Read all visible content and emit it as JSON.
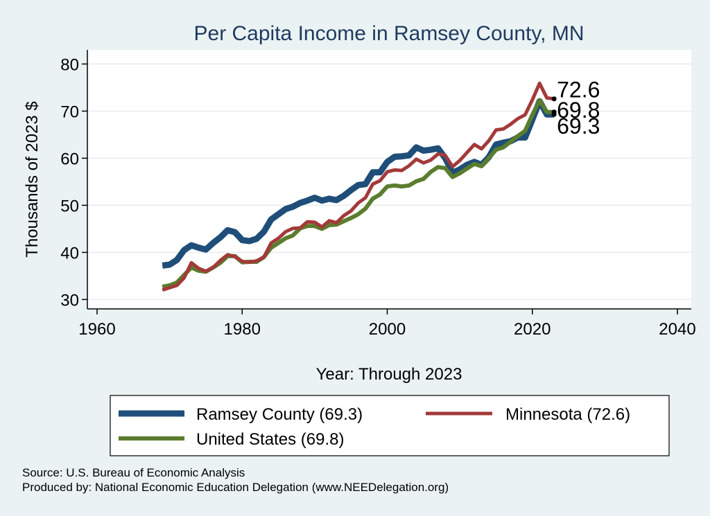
{
  "chart_data": {
    "type": "line",
    "title": "Per Capita Income in Ramsey County, MN",
    "xlabel": "Year: Through 2023",
    "ylabel": "Thousands of 2023 $",
    "xlim": [
      1960,
      2040
    ],
    "ylim": [
      28,
      83
    ],
    "xticks": [
      1960,
      1980,
      2000,
      2020,
      2040
    ],
    "yticks": [
      30,
      40,
      50,
      60,
      70,
      80
    ],
    "grid": true,
    "legend_position": "bottom",
    "x": [
      1969,
      1970,
      1971,
      1972,
      1973,
      1974,
      1975,
      1976,
      1977,
      1978,
      1979,
      1980,
      1981,
      1982,
      1983,
      1984,
      1985,
      1986,
      1987,
      1988,
      1989,
      1990,
      1991,
      1992,
      1993,
      1994,
      1995,
      1996,
      1997,
      1998,
      1999,
      2000,
      2001,
      2002,
      2003,
      2004,
      2005,
      2006,
      2007,
      2008,
      2009,
      2010,
      2011,
      2012,
      2013,
      2014,
      2015,
      2016,
      2017,
      2018,
      2019,
      2020,
      2021,
      2022,
      2023
    ],
    "series": [
      {
        "name": "Ramsey County (69.3)",
        "color": "#1f4e79",
        "values": [
          37.2,
          37.4,
          38.4,
          40.5,
          41.5,
          41.0,
          40.6,
          42.0,
          43.2,
          44.7,
          44.3,
          42.6,
          42.4,
          42.9,
          44.4,
          47.0,
          48.1,
          49.2,
          49.7,
          50.5,
          51.0,
          51.6,
          51.0,
          51.4,
          51.1,
          52.0,
          53.2,
          54.3,
          54.5,
          57.0,
          57.0,
          59.2,
          60.3,
          60.4,
          60.6,
          62.3,
          61.6,
          61.8,
          62.1,
          60.0,
          56.9,
          57.6,
          58.6,
          59.2,
          58.6,
          60.2,
          62.9,
          63.3,
          63.6,
          64.4,
          64.4,
          68.2,
          72.1,
          69.3,
          69.3
        ],
        "end_label": "69.3"
      },
      {
        "name": "Minnesota (72.6)",
        "color": "#a33a3a",
        "values": [
          32.0,
          32.5,
          33.0,
          34.6,
          37.8,
          36.6,
          36.0,
          36.8,
          38.3,
          39.5,
          39.1,
          38.1,
          37.9,
          38.2,
          39.0,
          42.0,
          43.0,
          44.4,
          45.1,
          45.2,
          46.5,
          46.4,
          45.4,
          46.7,
          46.3,
          47.8,
          48.8,
          50.5,
          51.6,
          54.5,
          55.2,
          57.1,
          57.5,
          57.4,
          58.4,
          59.8,
          59.0,
          59.6,
          60.9,
          60.6,
          58.2,
          59.5,
          61.2,
          62.9,
          62.0,
          63.7,
          66.0,
          66.2,
          67.2,
          68.4,
          69.2,
          72.4,
          75.9,
          72.8,
          72.6
        ],
        "end_label": "72.6"
      },
      {
        "name": "United States (69.8)",
        "color": "#5a7d2e",
        "values": [
          32.7,
          33.0,
          33.6,
          35.2,
          36.8,
          36.1,
          35.9,
          36.8,
          37.8,
          39.2,
          39.2,
          37.9,
          38.0,
          38.0,
          39.0,
          41.0,
          42.0,
          43.0,
          43.6,
          45.1,
          45.6,
          45.6,
          45.0,
          45.8,
          45.9,
          46.6,
          47.3,
          48.1,
          49.3,
          51.4,
          52.3,
          54.0,
          54.2,
          54.0,
          54.2,
          55.1,
          55.6,
          57.1,
          58.1,
          57.9,
          56.0,
          56.8,
          57.8,
          58.8,
          58.3,
          60.0,
          61.8,
          62.3,
          63.5,
          64.7,
          65.8,
          69.2,
          72.3,
          69.8,
          69.8
        ],
        "end_label": "69.8"
      }
    ],
    "source_text": "Source: U.S. Bureau of Economic Analysis",
    "produced_text": "Produced by: National Economic Education Delegation (www.NEEDelegation.org)"
  }
}
